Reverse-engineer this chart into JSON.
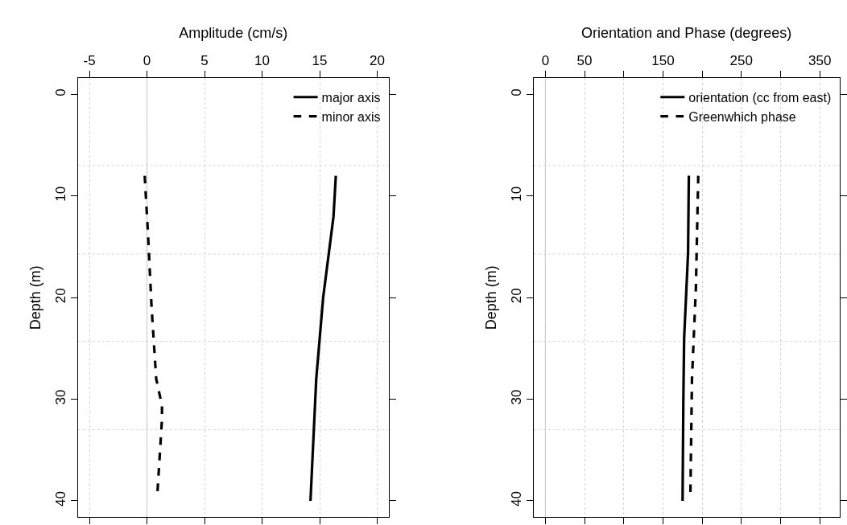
{
  "chart_data": [
    {
      "type": "line",
      "xlabel": "Amplitude (cm/s)",
      "ylabel": "Depth (m)",
      "xlim": [
        -6,
        21
      ],
      "xticks": [
        -5,
        0,
        5,
        10,
        15,
        20
      ],
      "ylim": [
        41.6,
        -1.6
      ],
      "yticks": [
        0,
        10,
        20,
        30,
        40
      ],
      "grid": "x",
      "legend": "top right",
      "series": [
        {
          "name": "major axis",
          "color": "#000000",
          "line_style": "solid",
          "x": [
            16.4,
            16.2,
            15.3,
            14.7,
            14.2
          ],
          "values": [
            8,
            12,
            20,
            28,
            40
          ]
        },
        {
          "name": "minor axis",
          "color": "#000000",
          "line_style": "dashed",
          "x": [
            -0.2,
            0.1,
            0.4,
            0.8,
            1.3,
            1.3,
            0.9
          ],
          "values": [
            8,
            14,
            21,
            28,
            30.6,
            32,
            39.3
          ]
        }
      ],
      "ref_lines": [
        {
          "axis": "x",
          "value": 0,
          "color": "#bebebe",
          "line_style": "solid"
        },
        {
          "axis": "y",
          "value": 7,
          "color": "#d3d3d3",
          "line_style": "dotted"
        },
        {
          "axis": "y",
          "value": 15.7,
          "color": "#d3d3d3",
          "line_style": "dotted"
        },
        {
          "axis": "y",
          "value": 24.3,
          "color": "#d3d3d3",
          "line_style": "dotted"
        },
        {
          "axis": "y",
          "value": 33,
          "color": "#d3d3d3",
          "line_style": "dotted"
        }
      ]
    },
    {
      "type": "line",
      "xlabel": "Orientation and Phase (degrees)",
      "ylabel": "Depth (m)",
      "xlim": [
        -15,
        375
      ],
      "xticks": [
        0,
        50,
        {
          "value": 100,
          "label": null
        },
        150,
        {
          "value": 200,
          "label": null
        },
        250,
        {
          "value": 300,
          "label": null
        },
        350
      ],
      "ylim": [
        41.6,
        -1.6
      ],
      "yticks": [
        0,
        10,
        20,
        30,
        40
      ],
      "grid": "x",
      "legend": "top right",
      "series": [
        {
          "name": "orientation (cc from east)",
          "color": "#000000",
          "line_style": "solid",
          "x": [
            183,
            182,
            177,
            176,
            175
          ],
          "values": [
            8,
            15.6,
            24,
            30,
            40
          ]
        },
        {
          "name": "Greenwhich phase",
          "color": "#000000",
          "line_style": "dashed",
          "x": [
            195,
            192,
            187,
            185
          ],
          "values": [
            8,
            19,
            28,
            39.3
          ]
        }
      ],
      "ref_lines": [
        {
          "axis": "x",
          "value": 0,
          "color": "#bebebe",
          "line_style": "solid"
        },
        {
          "axis": "y",
          "value": 7,
          "color": "#d3d3d3",
          "line_style": "dotted"
        },
        {
          "axis": "y",
          "value": 15.7,
          "color": "#d3d3d3",
          "line_style": "dotted"
        },
        {
          "axis": "y",
          "value": 24.3,
          "color": "#d3d3d3",
          "line_style": "dotted"
        },
        {
          "axis": "y",
          "value": 33,
          "color": "#d3d3d3",
          "line_style": "dotted"
        }
      ]
    }
  ]
}
